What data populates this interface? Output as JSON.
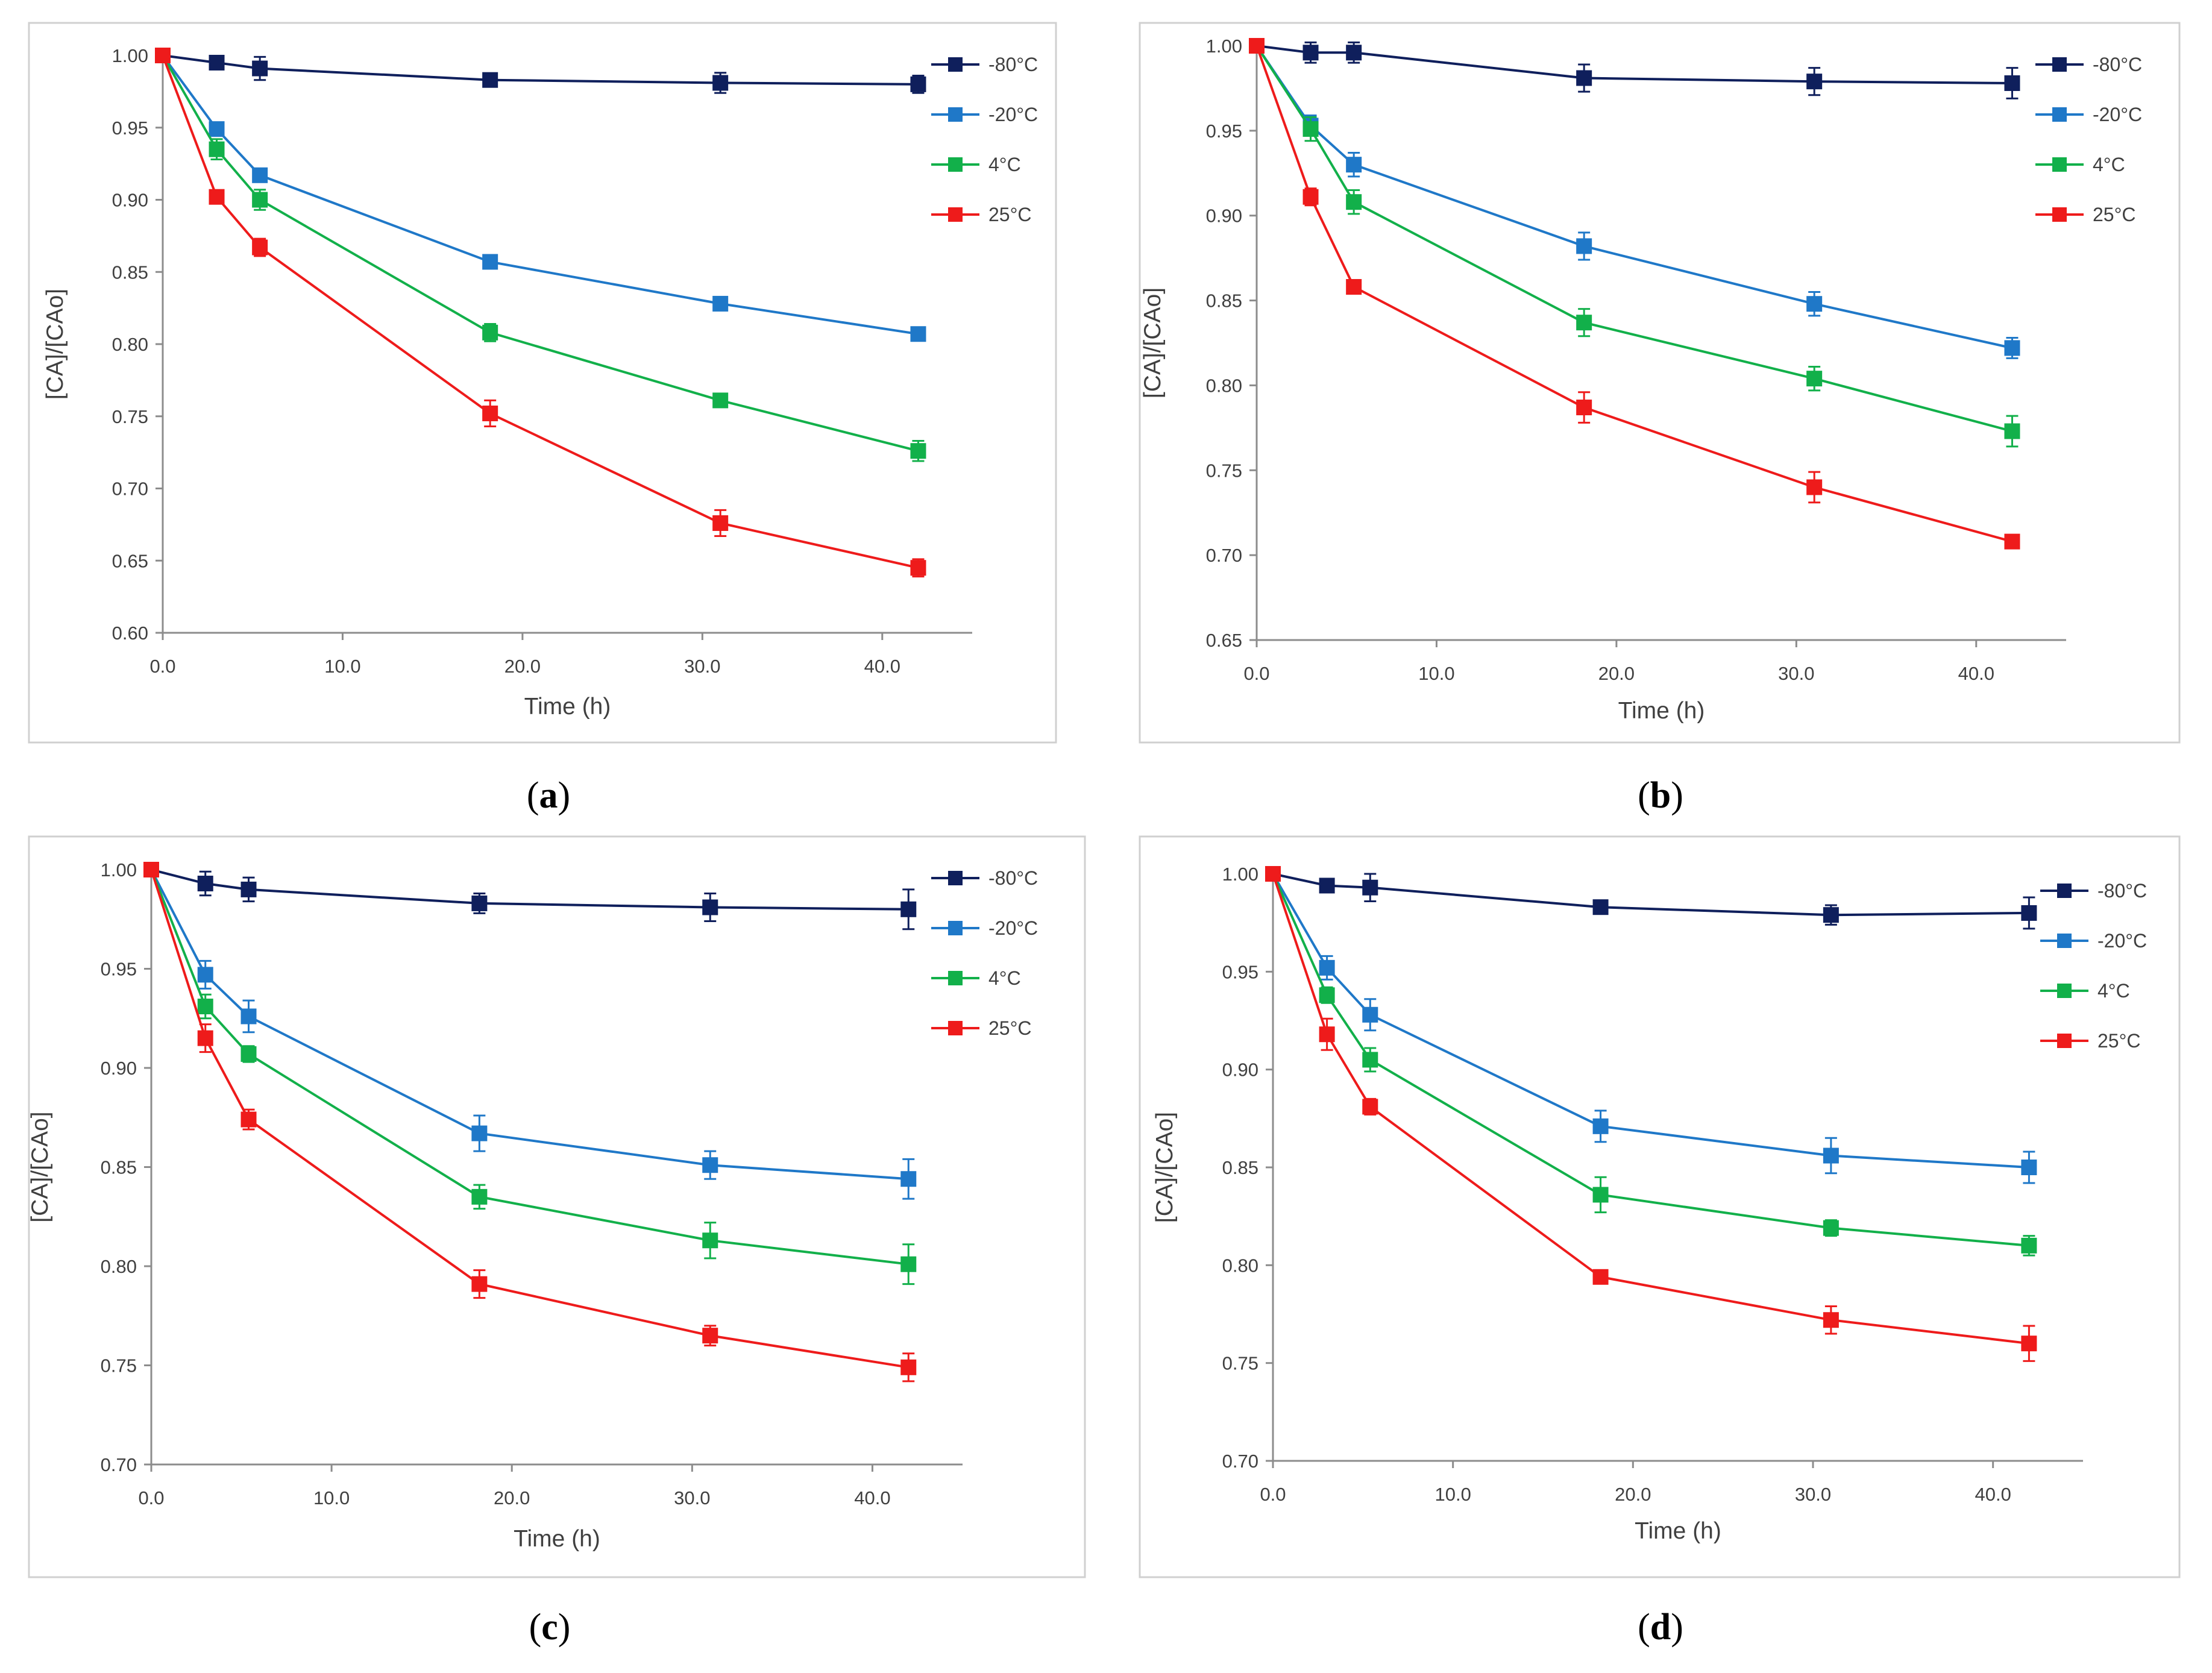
{
  "chart_data": [
    {
      "panel": "a",
      "caption": {
        "open": "(",
        "letter": "a",
        "close": ")"
      },
      "type": "line",
      "xlabel": "Time (h)",
      "ylabel": "[CA]/[CAo]",
      "xlim": [
        0,
        45
      ],
      "ylim": [
        0.6,
        1.0
      ],
      "x_ticks": [
        0,
        10,
        20,
        30,
        40
      ],
      "x_tick_labels": [
        "0.0",
        "10.0",
        "20.0",
        "30.0",
        "40.0"
      ],
      "y_ticks": [
        0.6,
        0.65,
        0.7,
        0.75,
        0.8,
        0.85,
        0.9,
        0.95,
        1.0
      ],
      "y_tick_labels": [
        "0.60",
        "0.65",
        "0.70",
        "0.75",
        "0.80",
        "0.85",
        "0.90",
        "0.95",
        "1.00"
      ],
      "grid": false,
      "legend_position": "top-right",
      "x": [
        0,
        3,
        5.4,
        18.2,
        31,
        42
      ],
      "series": [
        {
          "name": "-80°C",
          "color": "#0f1f5c",
          "values": [
            1.0,
            0.995,
            0.991,
            0.983,
            0.981,
            0.98
          ],
          "errors": [
            0,
            0.004,
            0.008,
            0.003,
            0.007,
            0.006
          ]
        },
        {
          "name": "-20°C",
          "color": "#1f78c8",
          "values": [
            1.0,
            0.949,
            0.917,
            0.857,
            0.828,
            0.807
          ],
          "errors": [
            0,
            0.004,
            0.004,
            0.004,
            0.003,
            0.003
          ]
        },
        {
          "name": "4°C",
          "color": "#12b04a",
          "values": [
            1.0,
            0.935,
            0.9,
            0.808,
            0.761,
            0.726
          ],
          "errors": [
            0,
            0.007,
            0.007,
            0.006,
            0.003,
            0.007
          ]
        },
        {
          "name": "25°C",
          "color": "#ee1b1b",
          "values": [
            1.0,
            0.902,
            0.867,
            0.752,
            0.676,
            0.645
          ],
          "errors": [
            0,
            0.004,
            0.006,
            0.009,
            0.009,
            0.006
          ]
        }
      ]
    },
    {
      "panel": "b",
      "caption": {
        "open": "(",
        "letter": "b",
        "close": ")"
      },
      "type": "line",
      "xlabel": "Time (h)",
      "ylabel": "[CA]/[CAo]",
      "xlim": [
        0,
        45
      ],
      "ylim": [
        0.65,
        1.0
      ],
      "x_ticks": [
        0,
        10,
        20,
        30,
        40
      ],
      "x_tick_labels": [
        "0.0",
        "10.0",
        "20.0",
        "30.0",
        "40.0"
      ],
      "y_ticks": [
        0.65,
        0.7,
        0.75,
        0.8,
        0.85,
        0.9,
        0.95,
        1.0
      ],
      "y_tick_labels": [
        "0.65",
        "0.70",
        "0.75",
        "0.80",
        "0.85",
        "0.90",
        "0.95",
        "1.00"
      ],
      "grid": false,
      "legend_position": "top-right",
      "x": [
        0,
        3,
        5.4,
        18.2,
        31,
        42
      ],
      "series": [
        {
          "name": "-80°C",
          "color": "#0f1f5c",
          "values": [
            1.0,
            0.996,
            0.996,
            0.981,
            0.979,
            0.978
          ],
          "errors": [
            0,
            0.006,
            0.006,
            0.008,
            0.008,
            0.009
          ]
        },
        {
          "name": "-20°C",
          "color": "#1f78c8",
          "values": [
            1.0,
            0.953,
            0.93,
            0.882,
            0.848,
            0.822
          ],
          "errors": [
            0,
            0.006,
            0.007,
            0.008,
            0.007,
            0.006
          ]
        },
        {
          "name": "4°C",
          "color": "#12b04a",
          "values": [
            1.0,
            0.951,
            0.908,
            0.837,
            0.804,
            0.773
          ],
          "errors": [
            0,
            0.007,
            0.007,
            0.008,
            0.007,
            0.009
          ]
        },
        {
          "name": "25°C",
          "color": "#ee1b1b",
          "values": [
            1.0,
            0.911,
            0.858,
            0.787,
            0.74,
            0.708
          ],
          "errors": [
            0,
            0.005,
            0.004,
            0.009,
            0.009,
            0.003
          ]
        }
      ]
    },
    {
      "panel": "c",
      "caption": {
        "open": "(",
        "letter": "c",
        "close": ")"
      },
      "type": "line",
      "xlabel": "Time (h)",
      "ylabel": "[CA]/[CAo]",
      "xlim": [
        0,
        45
      ],
      "ylim": [
        0.7,
        1.0
      ],
      "x_ticks": [
        0,
        10,
        20,
        30,
        40
      ],
      "x_tick_labels": [
        "0.0",
        "10.0",
        "20.0",
        "30.0",
        "40.0"
      ],
      "y_ticks": [
        0.7,
        0.75,
        0.8,
        0.85,
        0.9,
        0.95,
        1.0
      ],
      "y_tick_labels": [
        "0.70",
        "0.75",
        "0.80",
        "0.85",
        "0.90",
        "0.95",
        "1.00"
      ],
      "grid": false,
      "legend_position": "top-right",
      "x": [
        0,
        3,
        5.4,
        18.2,
        31,
        42
      ],
      "series": [
        {
          "name": "-80°C",
          "color": "#0f1f5c",
          "values": [
            1.0,
            0.993,
            0.99,
            0.983,
            0.981,
            0.98
          ],
          "errors": [
            0,
            0.006,
            0.006,
            0.005,
            0.007,
            0.01
          ]
        },
        {
          "name": "-20°C",
          "color": "#1f78c8",
          "values": [
            1.0,
            0.947,
            0.926,
            0.867,
            0.851,
            0.844
          ],
          "errors": [
            0,
            0.007,
            0.008,
            0.009,
            0.007,
            0.01
          ]
        },
        {
          "name": "4°C",
          "color": "#12b04a",
          "values": [
            1.0,
            0.931,
            0.907,
            0.835,
            0.813,
            0.801
          ],
          "errors": [
            0,
            0.006,
            0.004,
            0.006,
            0.009,
            0.01
          ]
        },
        {
          "name": "25°C",
          "color": "#ee1b1b",
          "values": [
            1.0,
            0.915,
            0.874,
            0.791,
            0.765,
            0.749
          ],
          "errors": [
            0,
            0.007,
            0.005,
            0.007,
            0.005,
            0.007
          ]
        }
      ]
    },
    {
      "panel": "d",
      "caption": {
        "open": "(",
        "letter": "d",
        "close": ")"
      },
      "type": "line",
      "xlabel": "Time (h)",
      "ylabel": "[CA]/[CAo]",
      "xlim": [
        0,
        45
      ],
      "ylim": [
        0.7,
        1.0
      ],
      "x_ticks": [
        0,
        10,
        20,
        30,
        40
      ],
      "x_tick_labels": [
        "0.0",
        "10.0",
        "20.0",
        "30.0",
        "40.0"
      ],
      "y_ticks": [
        0.7,
        0.75,
        0.8,
        0.85,
        0.9,
        0.95,
        1.0
      ],
      "y_tick_labels": [
        "0.70",
        "0.75",
        "0.80",
        "0.85",
        "0.90",
        "0.95",
        "1.00"
      ],
      "grid": false,
      "legend_position": "top-right",
      "x": [
        0,
        3,
        5.4,
        18.2,
        31,
        42
      ],
      "series": [
        {
          "name": "-80°C",
          "color": "#0f1f5c",
          "values": [
            1.0,
            0.994,
            0.993,
            0.983,
            0.979,
            0.98
          ],
          "errors": [
            0,
            0.003,
            0.007,
            0.003,
            0.005,
            0.008
          ]
        },
        {
          "name": "-20°C",
          "color": "#1f78c8",
          "values": [
            1.0,
            0.952,
            0.928,
            0.871,
            0.856,
            0.85
          ],
          "errors": [
            0,
            0.006,
            0.008,
            0.008,
            0.009,
            0.008
          ]
        },
        {
          "name": "4°C",
          "color": "#12b04a",
          "values": [
            1.0,
            0.938,
            0.905,
            0.836,
            0.819,
            0.81
          ],
          "errors": [
            0,
            0.004,
            0.006,
            0.009,
            0.004,
            0.005
          ]
        },
        {
          "name": "25°C",
          "color": "#ee1b1b",
          "values": [
            1.0,
            0.918,
            0.881,
            0.794,
            0.772,
            0.76
          ],
          "errors": [
            0,
            0.008,
            0.004,
            0.003,
            0.007,
            0.009
          ]
        }
      ]
    }
  ]
}
